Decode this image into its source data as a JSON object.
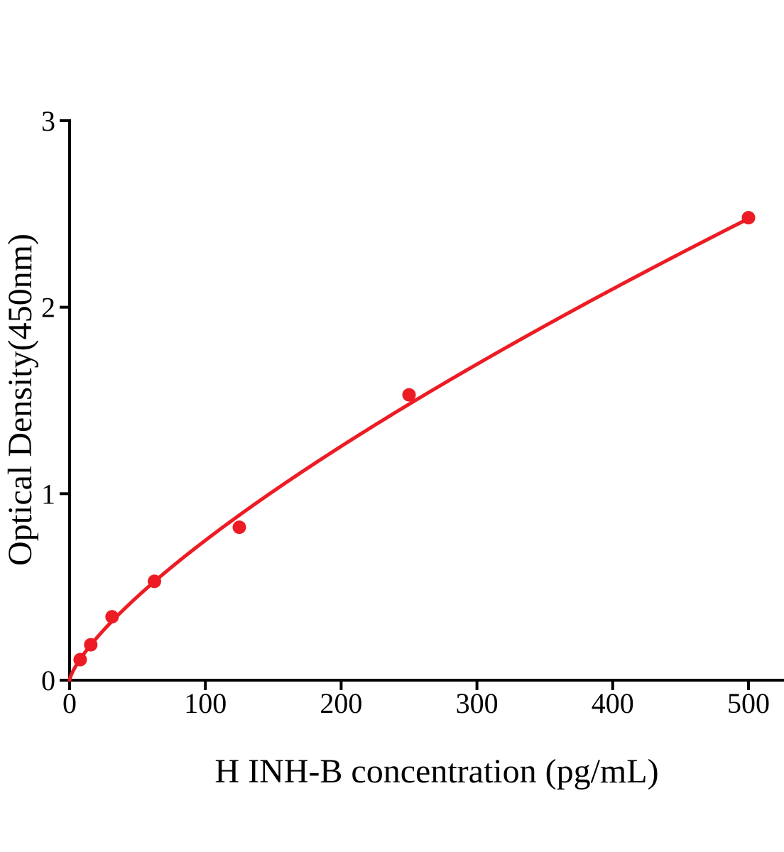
{
  "figure": {
    "background": "#ffffff"
  },
  "chart_data": {
    "type": "scatter",
    "title": "",
    "xlabel": "H INH-B concentration (pg/mL)",
    "ylabel": "Optical Density(450nm)",
    "points": [
      {
        "x": 7.8,
        "y": 0.11
      },
      {
        "x": 15.6,
        "y": 0.19
      },
      {
        "x": 31.25,
        "y": 0.34
      },
      {
        "x": 62.5,
        "y": 0.53
      },
      {
        "x": 125,
        "y": 0.82
      },
      {
        "x": 250,
        "y": 1.53
      },
      {
        "x": 500,
        "y": 2.48
      }
    ],
    "fit_curve": {
      "type": "power",
      "a": 0.0246,
      "b": 0.742,
      "x_start": 0,
      "x_end": 500
    },
    "x_ticks": [
      0,
      100,
      200,
      300,
      400,
      500
    ],
    "y_ticks": [
      0,
      1,
      2,
      3
    ],
    "xlim": [
      0,
      526
    ],
    "ylim": [
      0,
      3
    ],
    "grid": false,
    "legend": null,
    "marker_color": "#ED1C24",
    "line_color": "#ED1C24",
    "axis_color": "#000000"
  }
}
